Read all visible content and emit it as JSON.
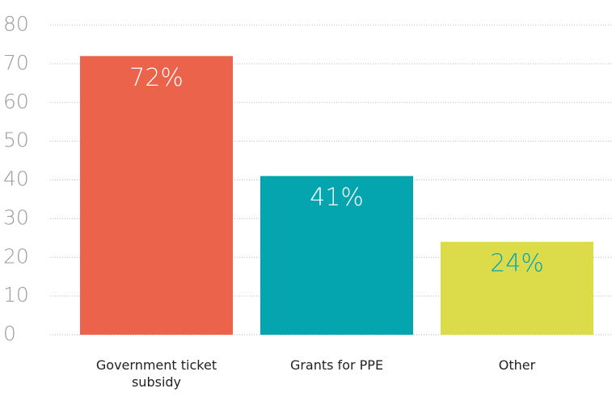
{
  "chart_data": {
    "type": "bar",
    "categories": [
      "Government ticket subsidy",
      "Grants for PPE",
      "Other"
    ],
    "values": [
      72,
      41,
      24
    ],
    "value_labels": [
      "72%",
      "41%",
      "24%"
    ],
    "colors": [
      "#ea634a",
      "#05a5b0",
      "#dcdc4a"
    ],
    "value_label_colors": [
      "#ffffff",
      "#ffffff",
      "#05a5b0"
    ],
    "ylim": [
      0,
      80
    ],
    "yticks": [
      0,
      10,
      20,
      30,
      40,
      50,
      60,
      70,
      80
    ],
    "grid": true
  }
}
